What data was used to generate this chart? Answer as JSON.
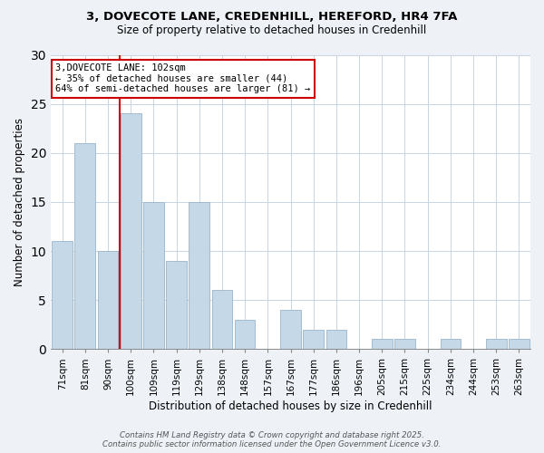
{
  "title1": "3, DOVECOTE LANE, CREDENHILL, HEREFORD, HR4 7FA",
  "title2": "Size of property relative to detached houses in Credenhill",
  "xlabel": "Distribution of detached houses by size in Credenhill",
  "ylabel": "Number of detached properties",
  "categories": [
    "71sqm",
    "81sqm",
    "90sqm",
    "100sqm",
    "109sqm",
    "119sqm",
    "129sqm",
    "138sqm",
    "148sqm",
    "157sqm",
    "167sqm",
    "177sqm",
    "186sqm",
    "196sqm",
    "205sqm",
    "215sqm",
    "225sqm",
    "234sqm",
    "244sqm",
    "253sqm",
    "263sqm"
  ],
  "values": [
    11,
    21,
    10,
    24,
    15,
    9,
    15,
    6,
    3,
    0,
    4,
    2,
    2,
    0,
    1,
    1,
    0,
    1,
    0,
    1,
    1
  ],
  "bar_color": "#c5d8e8",
  "bar_edge_color": "#9ab5cb",
  "ref_line_label": "3,DOVECOTE LANE: 102sqm",
  "annotation_line2": "← 35% of detached houses are smaller (44)",
  "annotation_line3": "64% of semi-detached houses are larger (81) →",
  "annotation_box_color": "#ffffff",
  "annotation_box_edge": "#cc0000",
  "ref_line_color": "#cc0000",
  "ref_line_index": 3,
  "ylim": [
    0,
    30
  ],
  "yticks": [
    0,
    5,
    10,
    15,
    20,
    25,
    30
  ],
  "footer1": "Contains HM Land Registry data © Crown copyright and database right 2025.",
  "footer2": "Contains public sector information licensed under the Open Government Licence v3.0.",
  "bg_color": "#eef2f7",
  "plot_bg_color": "#ffffff",
  "grid_color": "#c8d4de"
}
